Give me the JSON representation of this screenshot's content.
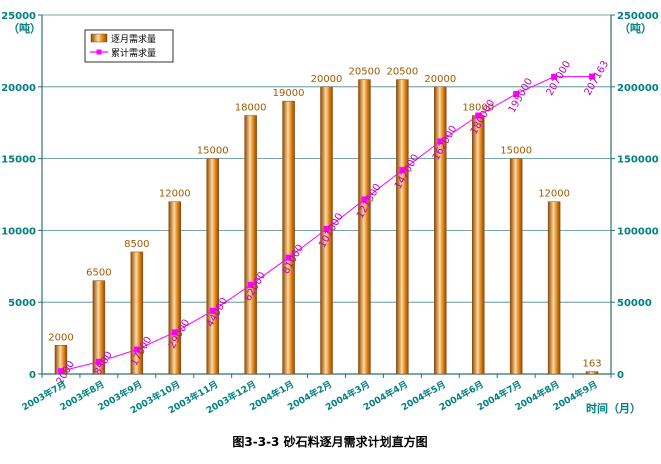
{
  "chart_data": {
    "type": "bar",
    "title": "图3-3-3   砂石料逐月需求计划直方图",
    "ylabel_left": "（吨）",
    "ylabel_right": "（吨）",
    "xlabel": "时间（月）",
    "ylim_left": [
      0,
      25000
    ],
    "ylim_right": [
      0,
      250000
    ],
    "yticks_left": [
      "0",
      "5000",
      "10000",
      "15000",
      "20000",
      "25000"
    ],
    "yticks_right": [
      "0",
      "50000",
      "100000",
      "150000",
      "200000",
      "250000"
    ],
    "grid": true,
    "legend_position": "top-left",
    "categories": [
      "2003年7月",
      "2003年8月",
      "2003年9月",
      "2003年10月",
      "2003年11月",
      "2003年12月",
      "2004年1月",
      "2004年2月",
      "2004年3月",
      "2004年4月",
      "2004年5月",
      "2004年6月",
      "2004年7月",
      "2004年8月",
      "2004年9月"
    ],
    "series": [
      {
        "name": "逐月需求量",
        "type": "bar",
        "axis": "left",
        "values": [
          2000,
          6500,
          8500,
          12000,
          15000,
          18000,
          19000,
          20000,
          20500,
          20500,
          20000,
          18000,
          15000,
          12000,
          163
        ],
        "labels": [
          "2000",
          "6500",
          "8500",
          "12000",
          "15000",
          "18000",
          "19000",
          "20000",
          "20500",
          "20500",
          "20000",
          "18000",
          "15000",
          "12000",
          "163"
        ]
      },
      {
        "name": "累计需求量",
        "type": "line",
        "axis": "right",
        "values": [
          2000,
          8500,
          17000,
          29000,
          44000,
          62000,
          81000,
          101000,
          121500,
          142000,
          162000,
          180000,
          195000,
          207000,
          207163
        ],
        "labels": [
          "2000",
          "8500",
          "17000",
          "29000",
          "44000",
          "62000",
          "81000",
          "101000",
          "121500",
          "142000",
          "162000",
          "180000",
          "195000",
          "207000",
          "207163"
        ]
      }
    ],
    "colors": {
      "bar_dark": "#8b4a08",
      "bar_mid": "#e58a1f",
      "bar_light": "#ffd9a0",
      "line": "#ff00ff",
      "bar_label": "#a05a00",
      "line_label": "#c000c0",
      "axis_text": "#008080",
      "grid": "#4a8a8a",
      "frame": "#2f6f6f"
    }
  }
}
